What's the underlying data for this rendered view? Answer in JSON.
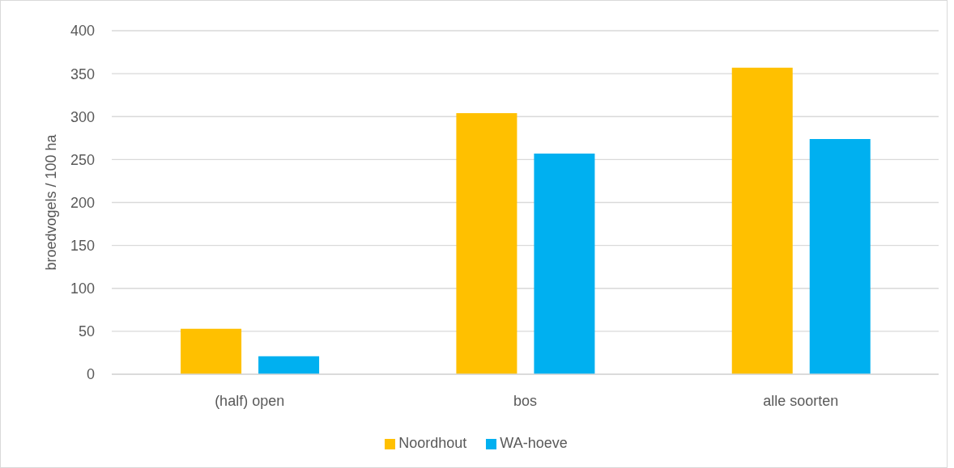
{
  "chart_data": {
    "type": "bar",
    "ylabel": "broedvogels / 100 ha",
    "categories": [
      "(half) open",
      "bos",
      "alle soorten"
    ],
    "series": [
      {
        "name": "Noordhout",
        "color": "#ffc000",
        "values": [
          53,
          304,
          357
        ]
      },
      {
        "name": "WA-hoeve",
        "color": "#00b0f0",
        "values": [
          21,
          257,
          274
        ]
      }
    ],
    "ylim": [
      0,
      400
    ],
    "yticks": [
      0,
      50,
      100,
      150,
      200,
      250,
      300,
      350,
      400
    ],
    "grid": "y",
    "legend": "bottom"
  }
}
